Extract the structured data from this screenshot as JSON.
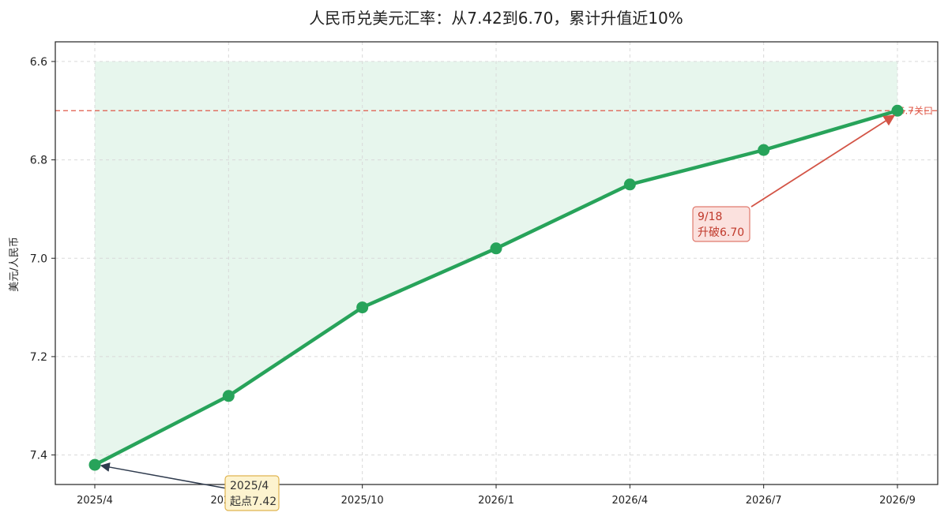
{
  "chart_data": {
    "type": "line",
    "title": "人民币兑美元汇率：从7.42到6.70，累计升值近10%",
    "xlabel": "",
    "ylabel": "美元/人民币",
    "categories": [
      "2025/4",
      "2025/7",
      "2025/10",
      "2026/1",
      "2026/4",
      "2026/7",
      "2026/9"
    ],
    "x_tick_labels": [
      "2025/4",
      "2025/7",
      "2025/10",
      "2026/1",
      "2026/4",
      "2026/7",
      "2026/9"
    ],
    "series": [
      {
        "values": [
          7.42,
          7.28,
          7.1,
          6.98,
          6.85,
          6.78,
          6.7
        ]
      }
    ],
    "ylim": [
      7.46,
      6.56
    ],
    "y_inverted": true,
    "y_ticks": [
      6.6,
      6.8,
      7.0,
      7.2,
      7.4
    ],
    "y_tick_labels": [
      "6.6",
      "6.8",
      "7.0",
      "7.2",
      "7.4"
    ],
    "reference_line": {
      "value": 6.7,
      "label": "6.7关口",
      "color": "#e05a4a"
    },
    "fill_to": 6.6,
    "grid": true,
    "annotations": [
      {
        "point_index": 0,
        "lines": [
          "2025/4",
          "起点7.42"
        ],
        "style": "start"
      },
      {
        "point_index": 6,
        "lines": [
          "9/18",
          "升破6.70"
        ],
        "style": "end"
      }
    ],
    "colors": {
      "line": "#27a35a",
      "fill": "#e3f4ea",
      "reference": "#e05a4a",
      "start_box_bg": "#fdf3cf",
      "start_box_border": "#e0b450",
      "start_arrow": "#2f3b4e",
      "end_box_bg": "#fbe1de",
      "end_box_border": "#e07a6e",
      "end_text": "#c0392b",
      "end_arrow": "#d35446"
    }
  }
}
